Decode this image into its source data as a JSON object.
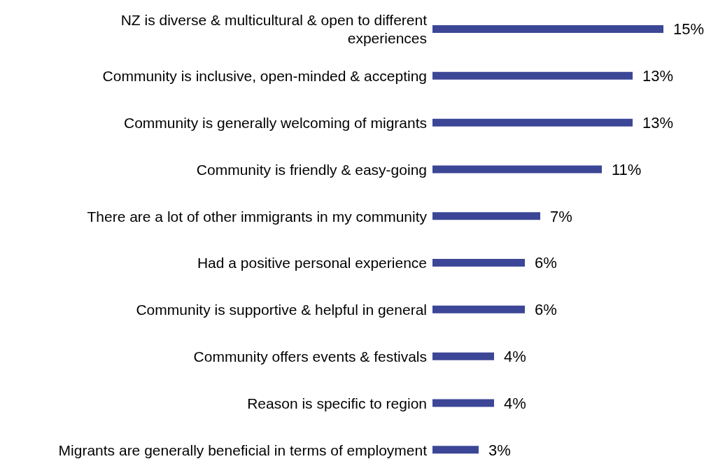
{
  "chart_data": {
    "type": "bar",
    "orientation": "horizontal",
    "color": "#3c4696",
    "categories": [
      "NZ is diverse & multicultural & open to different experiences",
      "Community is inclusive, open-minded & accepting",
      "Community is generally welcoming of migrants",
      "Community is friendly & easy-going",
      "There are a lot of other immigrants in my community",
      "Had a positive personal experience",
      "Community is supportive & helpful in general",
      "Community offers events & festivals",
      "Reason is specific to region",
      "Migrants are generally beneficial in terms of employment"
    ],
    "values": [
      15,
      13,
      13,
      11,
      7,
      6,
      6,
      4,
      4,
      3
    ],
    "value_labels": [
      "15%",
      "13%",
      "13%",
      "11%",
      "7%",
      "6%",
      "6%",
      "4%",
      "4%",
      "3%"
    ],
    "grid": false,
    "legend": false
  }
}
